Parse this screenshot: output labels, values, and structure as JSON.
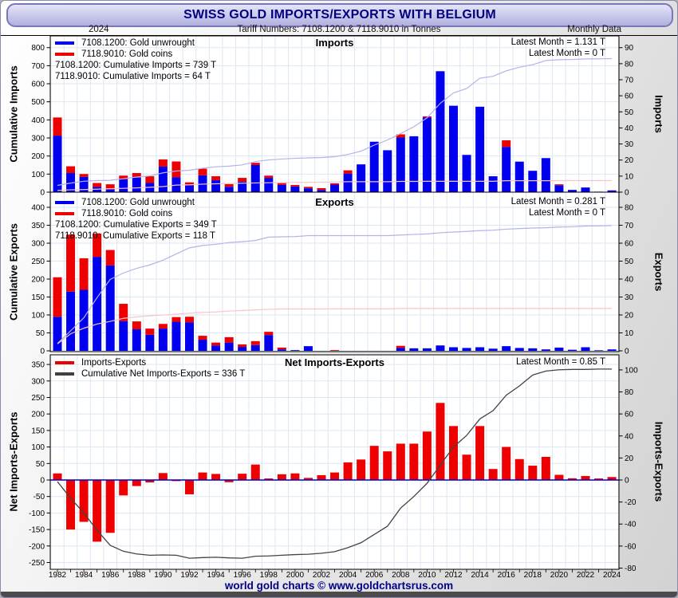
{
  "title": "SWISS GOLD IMPORTS/EXPORTS WITH BELGIUM",
  "header": {
    "year": "2024",
    "tariff": "Tariff Numbers: 7108.1200 & 7118.9010 in Tonnes",
    "frequency": "Monthly Data"
  },
  "footer": "world gold charts © www.goldchartsrus.com",
  "colors": {
    "bar_blue": "#0000ee",
    "bar_red": "#ee0000",
    "cum_blue_line": "#b3b3e8",
    "cum_red_line": "#f6c6cc",
    "cum_net_line": "#444444",
    "zero_line_blue": "#0000cc",
    "grid": "#dce6f2",
    "title_navy": "#000080"
  },
  "years": [
    1982,
    1983,
    1984,
    1985,
    1986,
    1987,
    1988,
    1989,
    1990,
    1991,
    1992,
    1993,
    1994,
    1995,
    1996,
    1997,
    1998,
    1999,
    2000,
    2001,
    2002,
    2003,
    2004,
    2005,
    2006,
    2007,
    2008,
    2009,
    2010,
    2011,
    2012,
    2013,
    2014,
    2015,
    2016,
    2017,
    2018,
    2019,
    2020,
    2021,
    2022,
    2023,
    2024
  ],
  "xtick_labels": [
    "1982",
    "1984",
    "1986",
    "1988",
    "1990",
    "1992",
    "1994",
    "1996",
    "1998",
    "2000",
    "2002",
    "2004",
    "2006",
    "2008",
    "2010",
    "2012",
    "2014",
    "2016",
    "2018",
    "2020",
    "2022",
    "2024"
  ],
  "chart_data": [
    {
      "type": "bar",
      "panel_title": "Imports",
      "ylabel_left": "Cumulative Imports",
      "ylabel_right": "Imports",
      "legend": [
        {
          "label": "7108.1200: Gold unwrought",
          "color": "#0000ee"
        },
        {
          "label": "7118.9010: Gold coins",
          "color": "#ee0000"
        }
      ],
      "annotations": [
        "7108.1200: Cumulative Imports = 739 T",
        "7118.9010: Cumulative Imports = 64 T"
      ],
      "latest": [
        "Latest Month = 1.131 T",
        "Latest Month = 0 T"
      ],
      "ylim_left": [
        0,
        800
      ],
      "left_ticks": [
        0,
        100,
        200,
        300,
        400,
        500,
        600,
        700,
        800
      ],
      "ylim_right": [
        0,
        90
      ],
      "right_ticks": [
        0,
        10,
        20,
        30,
        40,
        50,
        60,
        70,
        80,
        90
      ],
      "cumulative_totals": [
        739,
        64
      ],
      "series": [
        {
          "name": "7108.1200: Gold unwrought (T/yr)",
          "values": [
            35.2,
            11.9,
            9.6,
            3.2,
            1.7,
            8,
            9.1,
            5.7,
            15.9,
            9.2,
            4.2,
            10.5,
            7.4,
            3.3,
            6.6,
            16.9,
            8.9,
            4.6,
            3.6,
            2.4,
            1.4,
            4.7,
            11.6,
            17.3,
            31.4,
            26.1,
            34,
            34.8,
            46.6,
            75.3,
            53.8,
            23.2,
            53.2,
            9.9,
            28.1,
            19,
            13.3,
            21.2,
            4.3,
            1.4,
            2.9,
            0.3,
            1.1
          ]
        },
        {
          "name": "7118.9010: Gold coins (T/yr)",
          "values": [
            11.3,
            4.2,
            1.7,
            2.5,
            3.2,
            2.3,
            2.8,
            4.2,
            4.5,
            9.9,
            1.9,
            4.1,
            2.5,
            1.7,
            2.3,
            1.4,
            1.4,
            1,
            0.9,
            0.9,
            1.1,
            0.8,
            2,
            0,
            0,
            0,
            2,
            0,
            0.6,
            0,
            0,
            0,
            0,
            0,
            4.2,
            0,
            0,
            0,
            0.6,
            0,
            0,
            0,
            0
          ]
        }
      ]
    },
    {
      "type": "bar",
      "panel_title": "Exports",
      "ylabel_left": "Cumulative Exports",
      "ylabel_right": "Exports",
      "legend": [
        {
          "label": "7108.1200: Gold unwrought",
          "color": "#0000ee"
        },
        {
          "label": "7118.9010: Gold coins",
          "color": "#ee0000"
        }
      ],
      "annotations": [
        "7108.1200: Cumulative Exports = 349 T",
        "7118.9010: Cumulative Exports = 118 T"
      ],
      "latest": [
        "Latest Month = 0.281 T",
        "Latest Month = 0 T"
      ],
      "ylim_left": [
        0,
        400
      ],
      "left_ticks": [
        0,
        50,
        100,
        150,
        200,
        250,
        300,
        350,
        400
      ],
      "ylim_right": [
        0,
        80
      ],
      "right_ticks": [
        0,
        10,
        20,
        30,
        40,
        50,
        60,
        70,
        80
      ],
      "cumulative_totals": [
        349,
        118
      ],
      "series": [
        {
          "name": "7108.1200: Gold unwrought (T/yr)",
          "values": [
            19,
            33,
            34,
            52.4,
            47.6,
            16.6,
            12,
            9,
            12.4,
            16.2,
            15.8,
            6.2,
            3,
            4.6,
            2.2,
            3.2,
            8.8,
            0.8,
            0.4,
            2.6,
            0,
            0,
            0,
            0,
            0,
            0,
            1.6,
            1.4,
            1.4,
            3,
            2,
            1.6,
            2,
            1.2,
            2.6,
            1.6,
            1.4,
            0.8,
            1.8,
            0.6,
            2,
            0.3,
            0.8
          ]
        },
        {
          "name": "7118.9010: Gold coins (T/yr)",
          "values": [
            22,
            31.8,
            17.6,
            13,
            8.6,
            9.6,
            4.4,
            3.4,
            2.6,
            2.6,
            3.2,
            2.2,
            1.6,
            3,
            1.4,
            2.2,
            1.8,
            1,
            0,
            0,
            0,
            0.4,
            0,
            0,
            0,
            0,
            1.2,
            0,
            0,
            0,
            0,
            0,
            0,
            0,
            0,
            0,
            0,
            0,
            0,
            0,
            0,
            0,
            0
          ]
        }
      ]
    },
    {
      "type": "bar+line",
      "panel_title": "Net Imports-Exports",
      "ylabel_left": "Net Imports-Exports",
      "ylabel_right": "Imports-Exports",
      "legend": [
        {
          "label": "Imports-Exports",
          "color": "#ee0000"
        },
        {
          "label": "Cumulative Net Imports-Exports = 336 T",
          "color": "#404040"
        }
      ],
      "latest": [
        "Latest Month = 0.85 T"
      ],
      "ylim_left": [
        -250,
        350
      ],
      "left_ticks": [
        -250,
        -200,
        -150,
        -100,
        -50,
        0,
        50,
        100,
        150,
        200,
        250,
        300,
        350
      ],
      "ylim_right": [
        -80,
        100
      ],
      "right_ticks": [
        -80,
        -60,
        -40,
        -20,
        0,
        20,
        40,
        60,
        80,
        100
      ],
      "cumulative_total": 336,
      "values": [
        6,
        -45,
        -38,
        -56,
        -48,
        -14,
        -5.5,
        -2.2,
        6.3,
        -1,
        -13,
        6.8,
        5.5,
        -2,
        5.7,
        14,
        1.4,
        5.2,
        6,
        1.9,
        4.4,
        6.8,
        16,
        18.6,
        31,
        26,
        33,
        33,
        44,
        70,
        49,
        23,
        49,
        10,
        30,
        19,
        13,
        21,
        4.7,
        1.6,
        3.6,
        1.4,
        2.7
      ],
      "cum_line": [
        -5,
        -55,
        -100,
        -152,
        -198,
        -216,
        -224,
        -228,
        -227,
        -228,
        -237,
        -235,
        -234,
        -236,
        -237,
        -231,
        -230,
        -228,
        -226,
        -225,
        -222,
        -217,
        -205,
        -190,
        -165,
        -140,
        -85,
        -50,
        -10,
        45,
        100,
        135,
        185,
        210,
        257,
        285,
        318,
        330,
        334,
        335,
        335,
        336,
        336
      ]
    }
  ]
}
